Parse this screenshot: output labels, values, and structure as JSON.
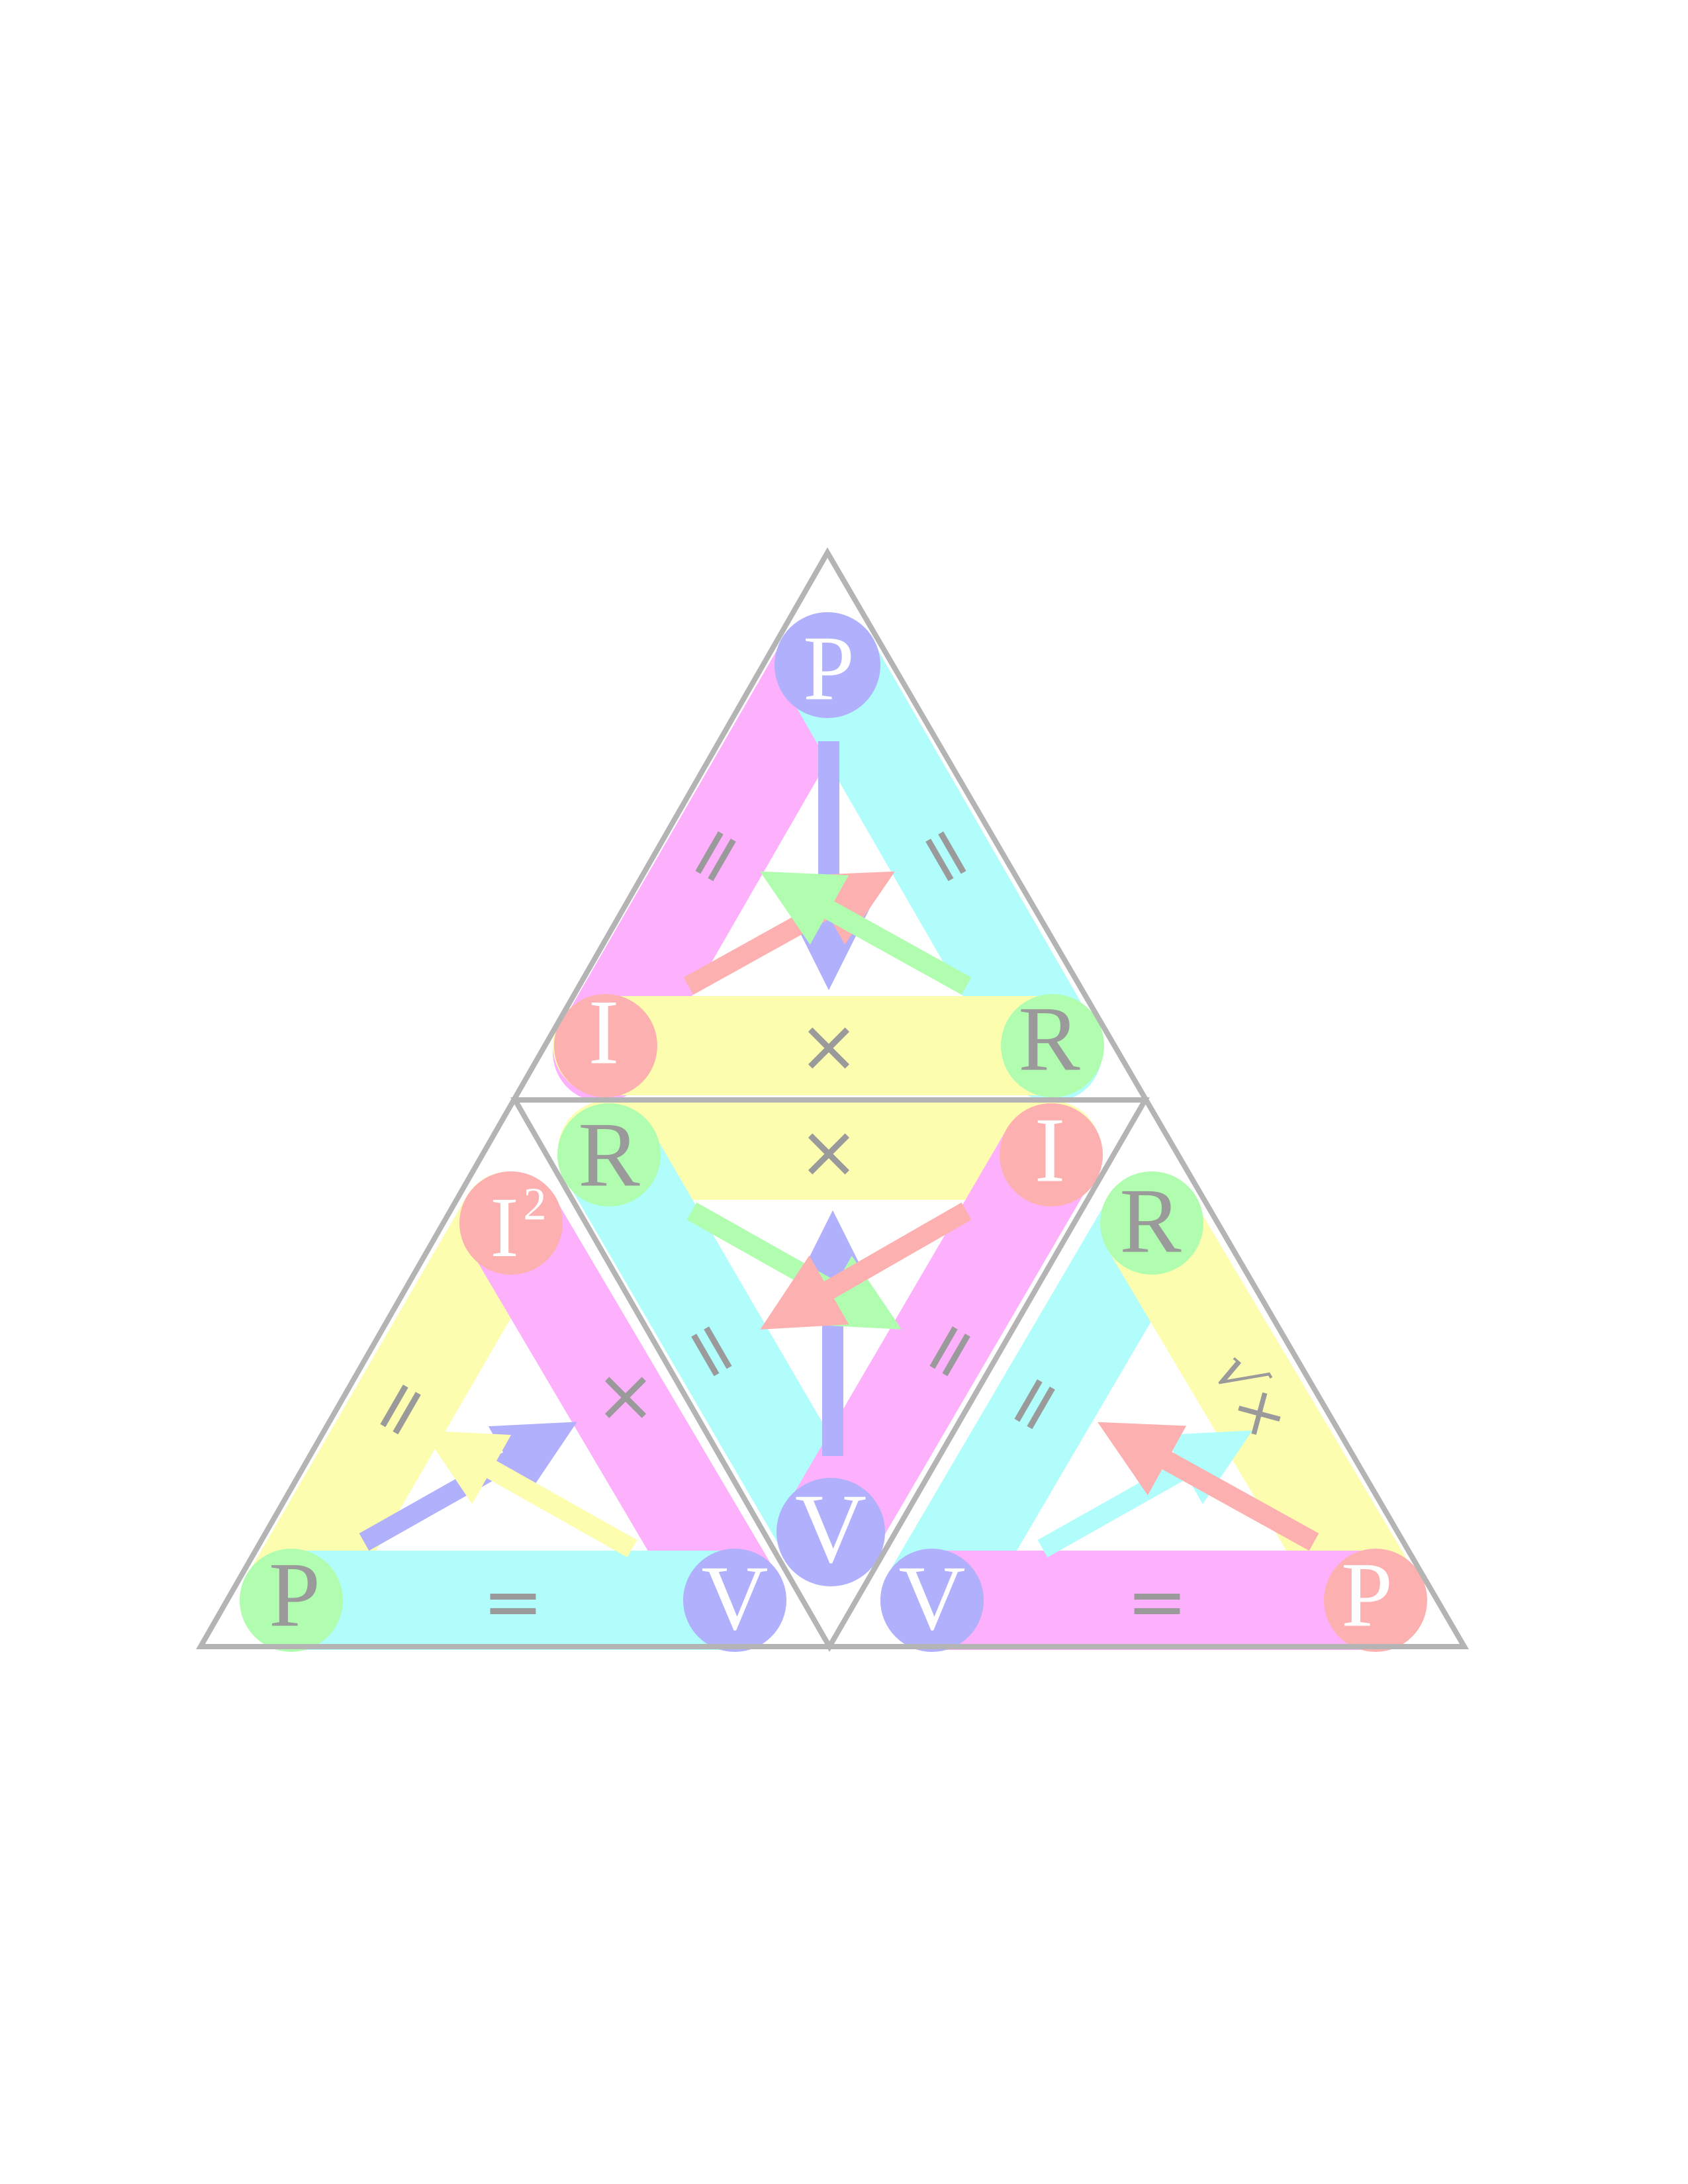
{
  "colors": {
    "outline": "#b4b4b4",
    "yellow": "#fdfdb0",
    "cyan": "#b0fdfc",
    "magenta": "#fdb0fc",
    "green": "#b0fdb0",
    "red": "#fdb0b0",
    "blue": "#b0b0fc",
    "text_gray": "#9a9a9a",
    "text_white": "#ffffff"
  },
  "top_triangle": {
    "vertex_top": "P",
    "vertex_left": "I",
    "vertex_right": "R",
    "op_left_side": "=",
    "op_right_side": "=",
    "op_bottom": "×"
  },
  "center_triangle": {
    "vertex_top_left": "R",
    "vertex_top_right": "I",
    "vertex_bottom": "V",
    "op_top": "×",
    "op_left_side": "=",
    "op_right_side": "="
  },
  "left_triangle": {
    "vertex_top": "I",
    "vertex_top_superscript": "2",
    "vertex_left": "P",
    "vertex_right": "V",
    "op_left_side": "=",
    "op_right_side": "×",
    "op_bottom": "="
  },
  "right_triangle": {
    "vertex_top": "R",
    "vertex_left": "V",
    "vertex_right": "P",
    "op_left_side": "=",
    "op_right_side": "√×",
    "op_bottom": "="
  }
}
